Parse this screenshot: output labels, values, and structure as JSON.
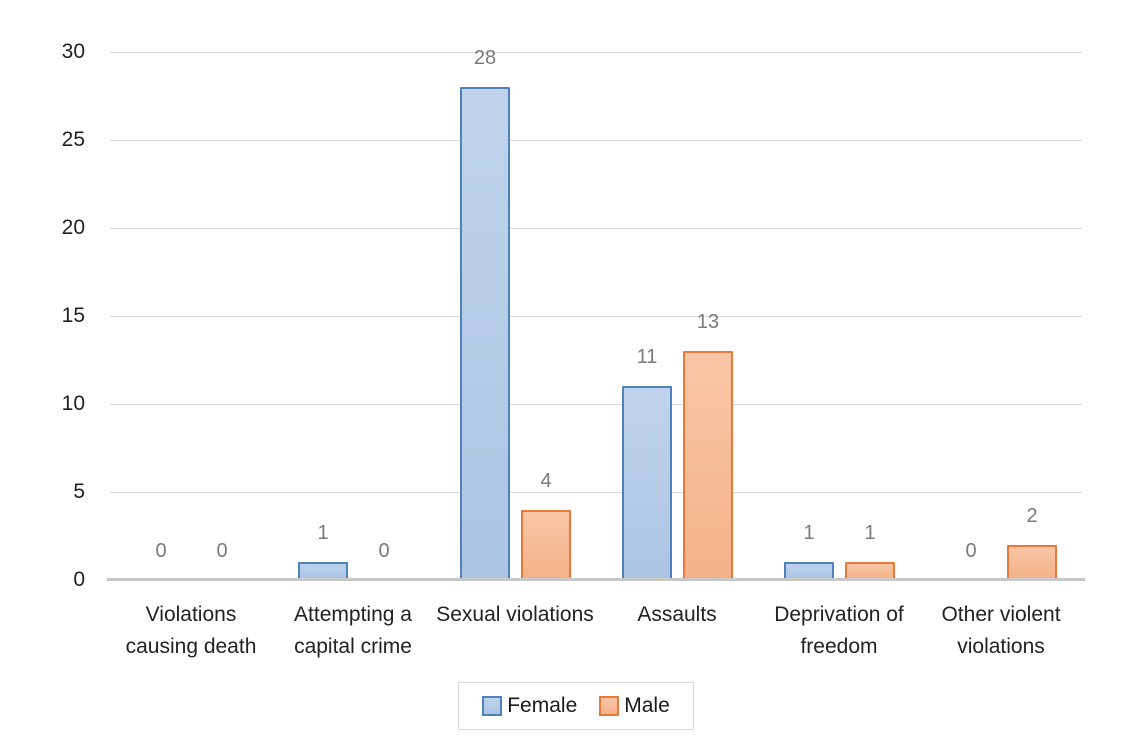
{
  "chart_data": {
    "type": "bar",
    "title": "",
    "xlabel": "",
    "ylabel": "",
    "categories": [
      "Violations causing death",
      "Attempting a capital crime",
      "Sexual violations",
      "Assaults",
      "Deprivation of freedom",
      "Other violent violations"
    ],
    "series": [
      {
        "name": "Female",
        "values": [
          0,
          1,
          28,
          11,
          1,
          0
        ],
        "fill_top": "#BFD3EC",
        "fill_bottom": "#ACC5E3",
        "border": "#4F81BD"
      },
      {
        "name": "Male",
        "values": [
          0,
          0,
          4,
          13,
          1,
          2
        ],
        "fill_top": "#F9C6A6",
        "fill_bottom": "#F4B289",
        "border": "#E8793A"
      }
    ],
    "y_ticks": [
      0,
      5,
      10,
      15,
      20,
      25,
      30
    ],
    "ylim": [
      0,
      30
    ],
    "grid": true,
    "data_labels": true,
    "legend_position": "bottom",
    "colors": {
      "gridline": "#D9D9D9",
      "axis_line": "#C8C8C8",
      "data_label": "#7A7A7A",
      "axis_text": "#222222",
      "legend_border": "#D9D9D9",
      "background": "#FFFFFF"
    }
  }
}
